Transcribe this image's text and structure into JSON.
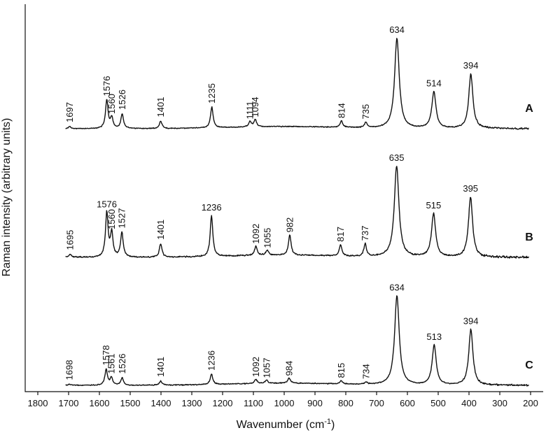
{
  "chart_data": {
    "type": "line",
    "xlabel": "Wavenumber (cm",
    "xlabel_sup": "-1",
    "xlabel_end": ")",
    "ylabel": "Raman intensity (arbitrary units)",
    "xlim": [
      1830,
      195
    ],
    "x_reversed": true,
    "x_ticks": [
      1800,
      1700,
      1600,
      1500,
      1400,
      1300,
      1200,
      1100,
      1000,
      900,
      800,
      700,
      600,
      500,
      400,
      300,
      200
    ],
    "legend": "right",
    "grid": false,
    "series": [
      {
        "name": "A",
        "peaks": [
          {
            "x": 1697,
            "label": "1697",
            "h": 0.02
          },
          {
            "x": 1576,
            "label": "1576",
            "h": 0.27
          },
          {
            "x": 1560,
            "label": "1560",
            "h": 0.1
          },
          {
            "x": 1526,
            "label": "1526",
            "h": 0.14
          },
          {
            "x": 1401,
            "label": "1401",
            "h": 0.07
          },
          {
            "x": 1235,
            "label": "1235",
            "h": 0.2
          },
          {
            "x": 1111,
            "label": "1111",
            "h": 0.05
          },
          {
            "x": 1094,
            "label": "1094",
            "h": 0.07
          },
          {
            "x": 814,
            "label": "814",
            "h": 0.06
          },
          {
            "x": 735,
            "label": "735",
            "h": 0.05
          },
          {
            "x": 634,
            "label": "634",
            "h": 0.86
          },
          {
            "x": 514,
            "label": "514",
            "h": 0.35
          },
          {
            "x": 394,
            "label": "394",
            "h": 0.52
          }
        ]
      },
      {
        "name": "B",
        "peaks": [
          {
            "x": 1695,
            "label": "1695",
            "h": 0.03
          },
          {
            "x": 1576,
            "label": "1576",
            "h": 0.43
          },
          {
            "x": 1560,
            "label": "1560",
            "h": 0.23
          },
          {
            "x": 1527,
            "label": "1527",
            "h": 0.24
          },
          {
            "x": 1401,
            "label": "1401",
            "h": 0.13
          },
          {
            "x": 1236,
            "label": "1236",
            "h": 0.4
          },
          {
            "x": 1092,
            "label": "1092",
            "h": 0.09
          },
          {
            "x": 1055,
            "label": "1055",
            "h": 0.05
          },
          {
            "x": 982,
            "label": "982",
            "h": 0.2
          },
          {
            "x": 817,
            "label": "817",
            "h": 0.11
          },
          {
            "x": 737,
            "label": "737",
            "h": 0.12
          },
          {
            "x": 635,
            "label": "635",
            "h": 0.88
          },
          {
            "x": 515,
            "label": "515",
            "h": 0.42
          },
          {
            "x": 395,
            "label": "395",
            "h": 0.58
          }
        ]
      },
      {
        "name": "C",
        "peaks": [
          {
            "x": 1698,
            "label": "1698",
            "h": 0.01
          },
          {
            "x": 1578,
            "label": "1578",
            "h": 0.15
          },
          {
            "x": 1561,
            "label": "1561",
            "h": 0.07
          },
          {
            "x": 1526,
            "label": "1526",
            "h": 0.07
          },
          {
            "x": 1401,
            "label": "1401",
            "h": 0.04
          },
          {
            "x": 1236,
            "label": "1236",
            "h": 0.1
          },
          {
            "x": 1092,
            "label": "1092",
            "h": 0.04
          },
          {
            "x": 1057,
            "label": "1057",
            "h": 0.03
          },
          {
            "x": 984,
            "label": "984",
            "h": 0.05
          },
          {
            "x": 815,
            "label": "815",
            "h": 0.03
          },
          {
            "x": 734,
            "label": "734",
            "h": 0.02
          },
          {
            "x": 634,
            "label": "634",
            "h": 0.85
          },
          {
            "x": 513,
            "label": "513",
            "h": 0.38
          },
          {
            "x": 394,
            "label": "394",
            "h": 0.53
          }
        ]
      }
    ]
  }
}
